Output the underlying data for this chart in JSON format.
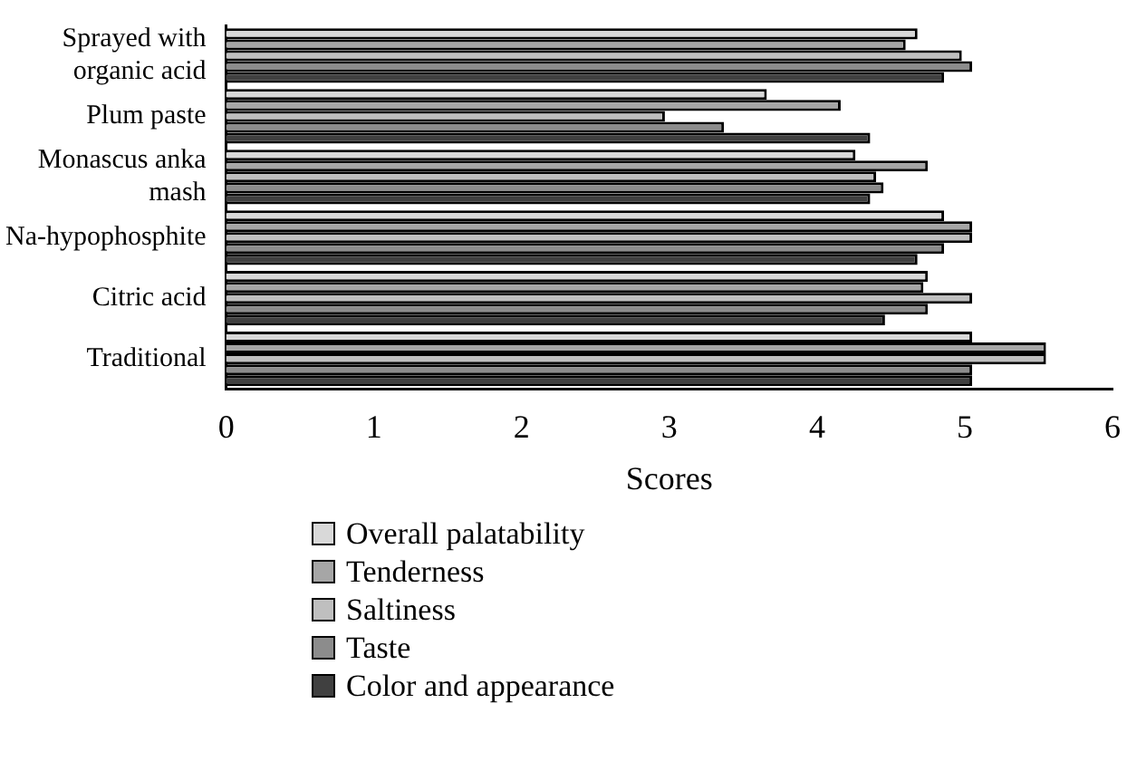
{
  "chart_data": {
    "type": "bar",
    "orientation": "horizontal",
    "xlabel": "Scores",
    "categories": [
      "Sprayed with organic acid",
      "Plum paste",
      "Monascus anka mash",
      "Na-hypophosphite",
      "Citric acid",
      "Traditional"
    ],
    "series": [
      {
        "name": "Overall palatability",
        "color": "#d9d9d9",
        "values": [
          4.68,
          3.66,
          4.26,
          4.86,
          4.75,
          5.05
        ]
      },
      {
        "name": "Tenderness",
        "color": "#a6a6a6",
        "values": [
          4.6,
          4.16,
          4.75,
          5.05,
          4.72,
          5.55
        ]
      },
      {
        "name": "Saltiness",
        "color": "#bfbfbf",
        "values": [
          4.98,
          2.97,
          4.4,
          5.05,
          5.05,
          5.55
        ]
      },
      {
        "name": "Taste",
        "color": "#8c8c8c",
        "values": [
          5.05,
          3.37,
          4.45,
          4.86,
          4.75,
          5.05
        ]
      },
      {
        "name": "Color and appearance",
        "color": "#404040",
        "values": [
          4.86,
          4.36,
          4.36,
          4.68,
          4.46,
          5.05
        ]
      }
    ],
    "xlim": [
      0,
      6
    ],
    "xticks": [
      0,
      1,
      2,
      3,
      4,
      5,
      6
    ],
    "grid": false,
    "legend": "bottom"
  }
}
